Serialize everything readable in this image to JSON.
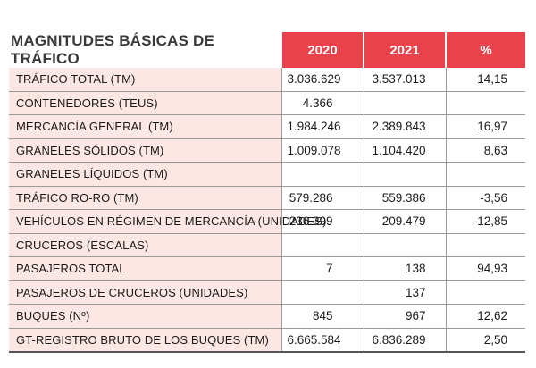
{
  "table": {
    "title": "MAGNITUDES BÁSICAS DE TRÁFICO",
    "columns": [
      "2020",
      "2021",
      "%"
    ],
    "colors": {
      "header_bg": "#e8434a",
      "label_bg": "#fde7e5"
    },
    "rows": [
      {
        "label": "TRÁFICO TOTAL (TM)",
        "v2020": "3.036.629",
        "v2021": "3.537.013",
        "pct": "14,15"
      },
      {
        "label": "CONTENEDORES (TEUS)",
        "v2020": "4.366",
        "v2021": "",
        "pct": ""
      },
      {
        "label": "MERCANCÍA GENERAL (TM)",
        "v2020": "1.984.246",
        "v2021": "2.389.843",
        "pct": "16,97"
      },
      {
        "label": "GRANELES SÓLIDOS (TM)",
        "v2020": "1.009.078",
        "v2021": "1.104.420",
        "pct": "8,63"
      },
      {
        "label": "GRANELES LÍQUIDOS (TM)",
        "v2020": "",
        "v2021": "",
        "pct": ""
      },
      {
        "label": "TRÁFICO RO-RO (TM)",
        "v2020": "579.286",
        "v2021": "559.386",
        "pct": "-3,56"
      },
      {
        "label": "VEHÍCULOS EN RÉGIMEN DE MERCANCÍA (UNIDADES)",
        "v2020": "236.399",
        "v2021": "209.479",
        "pct": "-12,85"
      },
      {
        "label": "CRUCEROS (ESCALAS)",
        "v2020": "",
        "v2021": "",
        "pct": ""
      },
      {
        "label": "PASAJEROS TOTAL",
        "v2020": "7",
        "v2021": "138",
        "pct": "94,93"
      },
      {
        "label": "PASAJEROS DE CRUCEROS (UNIDADES)",
        "v2020": "",
        "v2021": "137",
        "pct": ""
      },
      {
        "label": "BUQUES (Nº)",
        "v2020": "845",
        "v2021": "967",
        "pct": "12,62"
      },
      {
        "label": "GT-REGISTRO BRUTO DE LOS BUQUES (TM)",
        "v2020": "6.665.584",
        "v2021": "6.836.289",
        "pct": "2,50"
      }
    ]
  }
}
